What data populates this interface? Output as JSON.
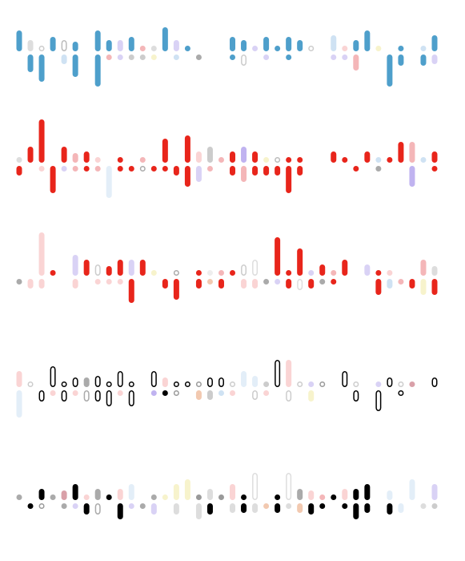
{
  "chart_data": {
    "type": "glyph",
    "rows": [
      {
        "up": [
          26,
          14,
          6,
          18,
          14,
          12,
          0,
          26,
          14,
          14,
          18,
          6,
          6,
          30,
          14,
          6,
          0,
          0,
          0,
          18,
          14,
          6,
          18,
          6,
          18,
          14,
          6,
          0,
          20,
          6,
          14,
          26,
          6,
          0,
          6,
          0,
          6,
          20
        ],
        "up_colors": [
          "#4e9fcb",
          "#dddddd",
          "#cccccc",
          "#4e9fcb",
          "#bbbbbb",
          "#4e9fcb",
          "#ffffff",
          "#4e9fcb",
          "#4e9fcb",
          "#d9d2f5",
          "#4e9fcb",
          "#f4b6b8",
          "#dddddd",
          "#4e9fcb",
          "#d9d2f5",
          "#4e9fcb",
          "#ffffff",
          "#ffffff",
          "#ffffff",
          "#4e9fcb",
          "#4e9fcb",
          "#d9d2f5",
          "#4e9fcb",
          "#4e9fcb",
          "#4e9fcb",
          "#4e9fcb",
          "#cccccc",
          "#ffffff",
          "#cfe2f3",
          "#fad4d4",
          "#4e9fcb",
          "#4e9fcb",
          "#f7f3cc",
          "#ffffff",
          "#4e9fcb",
          "#ffffff",
          "#cfe2f3",
          "#4e9fcb"
        ],
        "up_hollow": [
          2,
          4,
          26
        ],
        "down": [
          0,
          22,
          34,
          0,
          12,
          28,
          0,
          40,
          6,
          6,
          6,
          6,
          6,
          0,
          6,
          0,
          6,
          0,
          0,
          6,
          14,
          0,
          6,
          0,
          6,
          0,
          0,
          0,
          6,
          6,
          20,
          0,
          0,
          40,
          14,
          0,
          14,
          12
        ],
        "down_colors": [
          "#ffffff",
          "#4e9fcb",
          "#4e9fcb",
          "#ffffff",
          "#cfe2f3",
          "#4e9fcb",
          "#ffffff",
          "#4e9fcb",
          "#f4b6b8",
          "#d9d2f5",
          "#cccccc",
          "#cccccc",
          "#f7f3cc",
          "#ffffff",
          "#cfe2f3",
          "#ffffff",
          "#aaaaaa",
          "#ffffff",
          "#ffffff",
          "#4e9fcb",
          "#cccccc",
          "#ffffff",
          "#d9d2f5",
          "#ffffff",
          "#4e9fcb",
          "#ffffff",
          "#ffffff",
          "#ffffff",
          "#d9d2f5",
          "#d9d2f5",
          "#f4b6b8",
          "#ffffff",
          "#ffffff",
          "#4e9fcb",
          "#4e9fcb",
          "#ffffff",
          "#4e9fcb",
          "#d9d2f5"
        ],
        "down_hollow": [
          20
        ]
      },
      {
        "up": [
          6,
          20,
          54,
          0,
          20,
          12,
          14,
          6,
          0,
          6,
          0,
          6,
          0,
          30,
          0,
          34,
          14,
          20,
          6,
          14,
          20,
          14,
          6,
          6,
          6,
          6,
          0,
          0,
          14,
          6,
          0,
          14,
          6,
          6,
          26,
          26,
          6,
          14
        ],
        "up_colors": [
          "#dddddd",
          "#e8251b",
          "#e8251b",
          "#ffffff",
          "#e8251b",
          "#f4b6b8",
          "#e8251b",
          "#fad4d4",
          "#ffffff",
          "#e8251b",
          "#ffffff",
          "#f4b6b8",
          "#ffffff",
          "#e8251b",
          "#ffffff",
          "#e8251b",
          "#fad4d4",
          "#cccccc",
          "#f4b6b8",
          "#e8251b",
          "#c0b3f0",
          "#e8251b",
          "#f7f3cc",
          "#bbbbbb",
          "#e8251b",
          "#e8251b",
          "#ffffff",
          "#ffffff",
          "#e8251b",
          "#e8251b",
          "#ffffff",
          "#e8251b",
          "#cfe2f3",
          "#e8251b",
          "#e8251b",
          "#f4b6b8",
          "#cfe2f3",
          "#e8251b"
        ],
        "up_hollow": [
          23
        ],
        "down": [
          12,
          12,
          6,
          34,
          6,
          6,
          6,
          6,
          40,
          6,
          6,
          6,
          6,
          6,
          12,
          26,
          20,
          6,
          0,
          12,
          20,
          12,
          12,
          12,
          34,
          12,
          0,
          0,
          0,
          0,
          6,
          0,
          6,
          0,
          0,
          26,
          0,
          6
        ],
        "down_colors": [
          "#e8251b",
          "#ffffff",
          "#fad4d4",
          "#e8251b",
          "#d9d2f5",
          "#f4b6b8",
          "#e8251b",
          "#f4b6b8",
          "#e3eef8",
          "#e8251b",
          "#e8251b",
          "#aaaaaa",
          "#e8251b",
          "#e8251b",
          "#e8251b",
          "#e8251b",
          "#d9d2f5",
          "#f4b6b8",
          "#ffffff",
          "#e8251b",
          "#f4b6b8",
          "#e8251b",
          "#e8251b",
          "#e8251b",
          "#e8251b",
          "#e8251b",
          "#ffffff",
          "#ffffff",
          "#ffffff",
          "#ffffff",
          "#e8251b",
          "#ffffff",
          "#aaaaaa",
          "#ffffff",
          "#ffffff",
          "#c0b3f0",
          "#ffffff",
          "#e8251b"
        ],
        "down_hollow": [
          11
        ]
      },
      {
        "up": [
          0,
          0,
          54,
          6,
          0,
          26,
          20,
          14,
          12,
          20,
          20,
          20,
          6,
          0,
          6,
          0,
          6,
          6,
          6,
          6,
          14,
          20,
          0,
          48,
          6,
          34,
          6,
          14,
          6,
          20,
          0,
          14,
          6,
          6,
          0,
          0,
          20,
          12
        ],
        "up_colors": [
          "#ffffff",
          "#ffffff",
          "#fad4d4",
          "#e8251b",
          "#ffffff",
          "#d9d2f5",
          "#e8251b",
          "#cccccc",
          "#e8251b",
          "#e8251b",
          "#d9d2f5",
          "#e8251b",
          "#f7f3cc",
          "#ffffff",
          "#aaaaaa",
          "#ffffff",
          "#e8251b",
          "#eeeeee",
          "#f4b6b8",
          "#e8251b",
          "#cccccc",
          "#dddddd",
          "#ffffff",
          "#e8251b",
          "#e8251b",
          "#e8251b",
          "#d9d2f5",
          "#e8251b",
          "#f4b6b8",
          "#e8251b",
          "#ffffff",
          "#d9d2f5",
          "#e8251b",
          "#fad4d4",
          "#ffffff",
          "#ffffff",
          "#f4b6b8",
          "#dddddd"
        ],
        "up_hollow": [
          7,
          14,
          20,
          21
        ],
        "down": [
          6,
          12,
          12,
          0,
          0,
          12,
          0,
          6,
          6,
          6,
          30,
          0,
          0,
          12,
          26,
          0,
          12,
          6,
          12,
          0,
          12,
          12,
          6,
          6,
          12,
          14,
          12,
          6,
          6,
          0,
          0,
          0,
          20,
          12,
          6,
          12,
          20,
          20
        ],
        "down_colors": [
          "#aaaaaa",
          "#fad4d4",
          "#fad4d4",
          "#ffffff",
          "#ffffff",
          "#fad4d4",
          "#ffffff",
          "#fad4d4",
          "#fad4d4",
          "#fad4d4",
          "#e8251b",
          "#ffffff",
          "#ffffff",
          "#e8251b",
          "#e8251b",
          "#ffffff",
          "#e8251b",
          "#f2c9b0",
          "#e8251b",
          "#ffffff",
          "#fad4d4",
          "#fad4d4",
          "#aaaaaa",
          "#d9d2f5",
          "#e8251b",
          "#dddddd",
          "#e8251b",
          "#aaaaaa",
          "#e8251b",
          "#ffffff",
          "#ffffff",
          "#ffffff",
          "#e8251b",
          "#cfe2f3",
          "#f4b6b8",
          "#e8251b",
          "#f7f3cc",
          "#e8251b"
        ],
        "down_hollow": [
          25
        ]
      },
      {
        "up": [
          20,
          6,
          0,
          26,
          6,
          12,
          12,
          14,
          6,
          20,
          6,
          0,
          20,
          12,
          6,
          6,
          6,
          12,
          12,
          6,
          20,
          14,
          6,
          34,
          34,
          6,
          6,
          6,
          0,
          20,
          6,
          0,
          6,
          12,
          6,
          6,
          6,
          12
        ],
        "up_colors": [
          "#fad4d4",
          "#cccccc",
          "#ffffff",
          "#000000",
          "#000000",
          "#000000",
          "#aaaaaa",
          "#000000",
          "#000000",
          "#000000",
          "#000000",
          "#ffffff",
          "#000000",
          "#fad4d4",
          "#000000",
          "#000000",
          "#999999",
          "#000000",
          "#000000",
          "#cccccc",
          "#e3eef8",
          "#e3eef8",
          "#cccccc",
          "#000000",
          "#fad4d4",
          "#cccccc",
          "#d9d2f5",
          "#999999",
          "#ffffff",
          "#000000",
          "#cccccc",
          "#ffffff",
          "#d9d2f5",
          "#000000",
          "#cccccc",
          "#d9a0a8",
          "#ffffff",
          "#000000"
        ],
        "up_hollow": [
          1,
          3,
          4,
          5,
          7,
          8,
          9,
          10,
          12,
          14,
          15,
          16,
          17,
          18,
          19,
          23,
          25,
          27,
          29,
          30,
          33,
          34,
          37
        ],
        "down": [
          34,
          0,
          14,
          6,
          14,
          6,
          14,
          14,
          20,
          6,
          20,
          6,
          6,
          6,
          6,
          6,
          12,
          12,
          6,
          6,
          0,
          12,
          6,
          0,
          14,
          6,
          14,
          6,
          0,
          0,
          14,
          0,
          26,
          0,
          6,
          6,
          0,
          0
        ],
        "down_colors": [
          "#e3eef8",
          "#ffffff",
          "#000000",
          "#fad4d4",
          "#000000",
          "#fad4d4",
          "#aaaaaa",
          "#000000",
          "#000000",
          "#fad4d4",
          "#000000",
          "#ffffff",
          "#c0b3f0",
          "#000000",
          "#999999",
          "#ffffff",
          "#f2c9b0",
          "#cccccc",
          "#cfe2f3",
          "#fad4d4",
          "#ffffff",
          "#cccccc",
          "#fad4d4",
          "#ffffff",
          "#cccccc",
          "#ffffff",
          "#f7f3cc",
          "#ffffff",
          "#ffffff",
          "#ffffff",
          "#000000",
          "#ffffff",
          "#000000",
          "#ffffff",
          "#000000",
          "#ffffff",
          "#ffffff",
          "#ffffff"
        ],
        "down_hollow": [
          1,
          2,
          4,
          6,
          7,
          8,
          10,
          14,
          21,
          24,
          30,
          32,
          34
        ]
      },
      {
        "up": [
          6,
          0,
          14,
          6,
          12,
          20,
          6,
          14,
          6,
          14,
          20,
          0,
          6,
          6,
          20,
          26,
          6,
          14,
          6,
          20,
          6,
          34,
          0,
          6,
          34,
          14,
          12,
          6,
          6,
          14,
          14,
          20,
          6,
          12,
          0,
          26,
          0,
          20
        ],
        "up_colors": [
          "#aaaaaa",
          "#ffffff",
          "#000000",
          "#aaaaaa",
          "#d9a0a8",
          "#000000",
          "#fad4d4",
          "#aaaaaa",
          "#000000",
          "#fad4d4",
          "#e3eef8",
          "#ffffff",
          "#aaaaaa",
          "#f7f3cc",
          "#f7f3cc",
          "#f7f3cc",
          "#999999",
          "#dddddd",
          "#999999",
          "#fad4d4",
          "#000000",
          "#dddddd",
          "#ffffff",
          "#000000",
          "#dddddd",
          "#aaaaaa",
          "#fad4d4",
          "#f4b6b8",
          "#000000",
          "#fad4d4",
          "#000000",
          "#000000",
          "#ffffff",
          "#e3eef8",
          "#ffffff",
          "#e3eef8",
          "#ffffff",
          "#d9d2f5"
        ],
        "up_hollow": [
          21,
          24
        ],
        "down": [
          0,
          6,
          6,
          6,
          6,
          6,
          14,
          14,
          6,
          20,
          6,
          6,
          14,
          6,
          14,
          6,
          20,
          14,
          6,
          12,
          12,
          12,
          6,
          12,
          6,
          12,
          14,
          6,
          0,
          6,
          20,
          12,
          0,
          14,
          12,
          0,
          6,
          6
        ],
        "down_colors": [
          "#ffffff",
          "#000000",
          "#999999",
          "#ffffff",
          "#aaaaaa",
          "#d9d2f5",
          "#000000",
          "#aaaaaa",
          "#ffffff",
          "#000000",
          "#d9d2f5",
          "#aaaaaa",
          "#d9d2f5",
          "#ffffff",
          "#dddddd",
          "#ffffff",
          "#dddddd",
          "#000000",
          "#ffffff",
          "#dddddd",
          "#000000",
          "#dddddd",
          "#f2c9b0",
          "#000000",
          "#dddddd",
          "#f2c9b0",
          "#000000",
          "#000000",
          "#ffffff",
          "#000000",
          "#000000",
          "#000000",
          "#ffffff",
          "#000000",
          "#e3eef8",
          "#ffffff",
          "#dddddd",
          "#cccccc"
        ],
        "down_hollow": [
          2,
          7
        ]
      }
    ]
  }
}
